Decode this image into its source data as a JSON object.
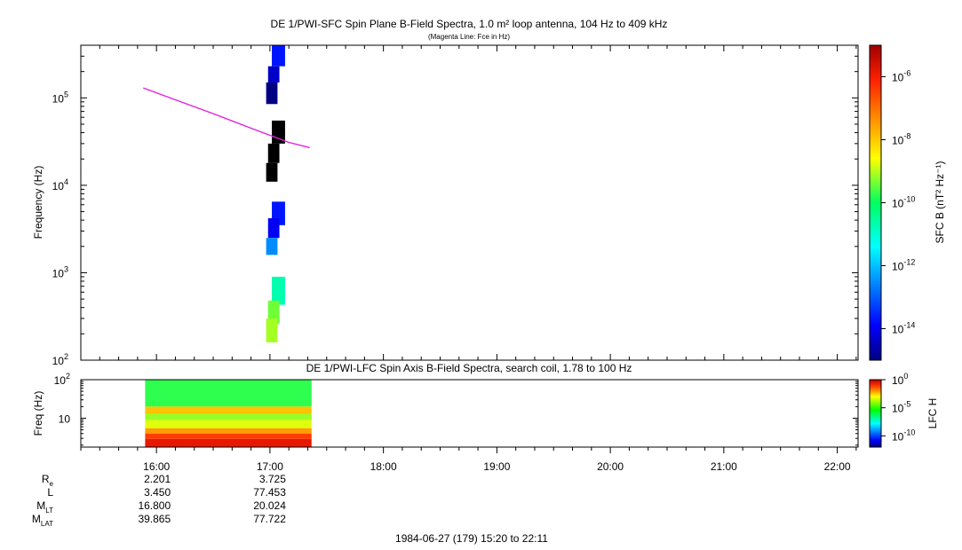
{
  "top": {
    "title": "DE 1/PWI-SFC  Spin Plane B-Field Spectra, 1.0 m² loop antenna, 104 Hz to 409 kHz",
    "subtitle": "(Magenta Line: Fce in Hz)",
    "ylabel": "Frequency (Hz)",
    "yticks": [
      {
        "base": "10",
        "exp": "2",
        "value": 100
      },
      {
        "base": "10",
        "exp": "3",
        "value": 1000
      },
      {
        "base": "10",
        "exp": "4",
        "value": 10000
      },
      {
        "base": "10",
        "exp": "5",
        "value": 100000
      }
    ],
    "colorbar": {
      "label": "SFC B (nT² Hz⁻¹)",
      "ticks": [
        {
          "base": "10",
          "exp": "-14"
        },
        {
          "base": "10",
          "exp": "-12"
        },
        {
          "base": "10",
          "exp": "-10"
        },
        {
          "base": "10",
          "exp": "-8"
        },
        {
          "base": "10",
          "exp": "-6"
        }
      ]
    }
  },
  "bottom": {
    "title": "DE 1/PWI-LFC  Spin Axis B-Field Spectra, search coil, 1.78 to 100 Hz",
    "ylabel": "Freq (Hz)",
    "yticks": [
      {
        "base": "10",
        "exp": "",
        "value": 10
      },
      {
        "base": "10",
        "exp": "2",
        "value": 100
      }
    ],
    "colorbar": {
      "label": "LFC H",
      "ticks": [
        {
          "base": "10",
          "exp": "-10"
        },
        {
          "base": "10",
          "exp": "-5"
        },
        {
          "base": "10",
          "exp": "0"
        }
      ]
    }
  },
  "xticks": [
    "16:00",
    "17:00",
    "18:00",
    "19:00",
    "20:00",
    "21:00",
    "22:00"
  ],
  "ephemeris": {
    "rows": [
      {
        "name": "R",
        "sub": "e",
        "v1": "2.201",
        "v2": "3.725"
      },
      {
        "name": "L",
        "sub": "",
        "v1": "3.450",
        "v2": "77.453"
      },
      {
        "name": "M",
        "sub": "LT",
        "v1": "16.800",
        "v2": "20.024"
      },
      {
        "name": "M",
        "sub": "LAT",
        "v1": "39.865",
        "v2": "77.722"
      }
    ]
  },
  "footer": "1984-06-27 (179) 15:20 to 22:11",
  "chart_data": [
    {
      "type": "heatmap",
      "title": "DE 1/PWI-SFC  Spin Plane B-Field Spectra, 1.0 m² loop antenna, 104 Hz to 409 kHz",
      "ylabel": "Frequency (Hz)",
      "yscale": "log",
      "ylim": [
        100,
        400000
      ],
      "xlim": [
        "15:20",
        "22:11"
      ],
      "colorbar_label": "SFC B (nT² Hz⁻¹)",
      "colorbar_range": [
        1e-15,
        1e-05
      ],
      "line": {
        "description": "Fce",
        "color": "#e020e0",
        "points": [
          {
            "t": "15:53",
            "f": 130000
          },
          {
            "t": "16:10",
            "f": 95000
          },
          {
            "t": "16:30",
            "f": 66000
          },
          {
            "t": "16:50",
            "f": 45000
          },
          {
            "t": "17:10",
            "f": 31000
          },
          {
            "t": "17:21",
            "f": 27000
          }
        ]
      },
      "cells": [
        {
          "t0": "17:01",
          "t1": "17:08",
          "f0": 230000,
          "f1": 400000,
          "level": 2e-14
        },
        {
          "t0": "16:59",
          "t1": "17:05",
          "f0": 150000,
          "f1": 230000,
          "level": 4e-15
        },
        {
          "t0": "16:58",
          "t1": "17:04",
          "f0": 85000,
          "f1": 150000,
          "level": 1e-15
        },
        {
          "t0": "17:01",
          "t1": "17:08",
          "f0": 30000,
          "f1": 55000,
          "level": 1e-16
        },
        {
          "t0": "16:59",
          "t1": "17:05",
          "f0": 18000,
          "f1": 30000,
          "level": 1e-16
        },
        {
          "t0": "16:58",
          "t1": "17:04",
          "f0": 11000,
          "f1": 18000,
          "level": 1e-16
        },
        {
          "t0": "17:01",
          "t1": "17:08",
          "f0": 3500,
          "f1": 6500,
          "level": 2e-14
        },
        {
          "t0": "16:59",
          "t1": "17:05",
          "f0": 2500,
          "f1": 4200,
          "level": 1e-14
        },
        {
          "t0": "16:58",
          "t1": "17:04",
          "f0": 1600,
          "f1": 2500,
          "level": 3e-13
        },
        {
          "t0": "17:01",
          "t1": "17:08",
          "f0": 430,
          "f1": 900,
          "level": 2e-11
        },
        {
          "t0": "16:59",
          "t1": "17:05",
          "f0": 260,
          "f1": 480,
          "level": 4e-10
        },
        {
          "t0": "16:58",
          "t1": "17:04",
          "f0": 160,
          "f1": 300,
          "level": 8e-10
        }
      ]
    },
    {
      "type": "heatmap",
      "title": "DE 1/PWI-LFC  Spin Axis B-Field Spectra, search coil, 1.78 to 100 Hz",
      "ylabel": "Freq (Hz)",
      "yscale": "log",
      "ylim": [
        1.78,
        100
      ],
      "xlim": [
        "15:20",
        "22:11"
      ],
      "colorbar_label": "LFC H",
      "colorbar_range": [
        1e-12,
        1
      ],
      "time_range": [
        "15:54",
        "17:22"
      ],
      "bands": [
        {
          "f0": 20,
          "f1": 100,
          "level": 2e-06
        },
        {
          "f0": 13,
          "f1": 20,
          "level": 0.0003
        },
        {
          "f0": 9,
          "f1": 13,
          "level": 1e-05
        },
        {
          "f0": 5.5,
          "f1": 9,
          "level": 3e-05
        },
        {
          "f0": 4.0,
          "f1": 5.5,
          "level": 0.001
        },
        {
          "f0": 2.9,
          "f1": 4.0,
          "level": 0.02
        },
        {
          "f0": 1.78,
          "f1": 2.9,
          "level": 0.1
        }
      ]
    }
  ]
}
